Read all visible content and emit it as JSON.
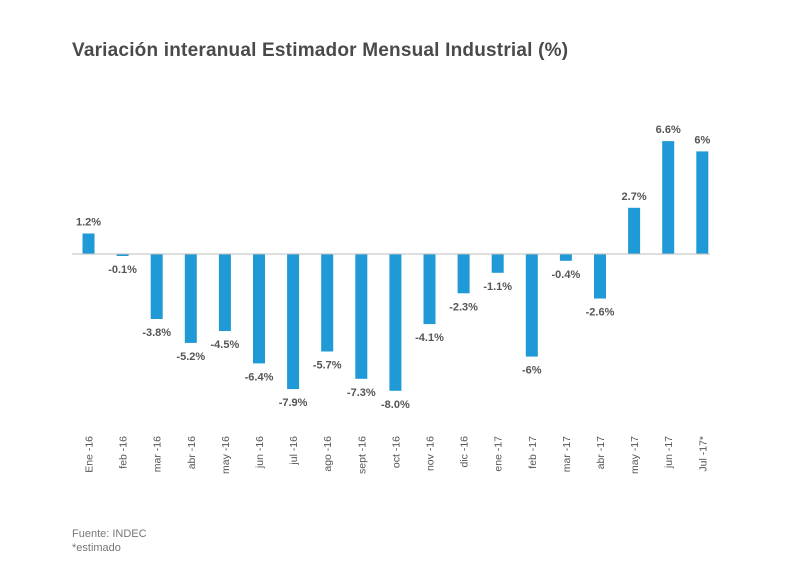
{
  "title": "Variación interanual Estimador Mensual Industrial (%)",
  "footer": {
    "source": "Fuente: INDEC",
    "note": "*estimado"
  },
  "colors": {
    "bar": "#1f9ad6",
    "axis": "#bdbdbd",
    "text": "#555555"
  },
  "chart_data": {
    "type": "bar",
    "title": "Variación interanual Estimador Mensual Industrial (%)",
    "xlabel": "",
    "ylabel": "",
    "grid": false,
    "categories": [
      "Ene -16",
      "feb -16",
      "mar -16",
      "abr -16",
      "may -16",
      "jun -16",
      "jul -16",
      "ago -16",
      "sept -16",
      "oct -16",
      "nov -16",
      "dic -16",
      "ene -17",
      "feb -17",
      "mar -17",
      "abr -17",
      "may -17",
      "jun -17",
      "Jul -17*"
    ],
    "values": [
      1.2,
      -0.1,
      -3.8,
      -5.2,
      -4.5,
      -6.4,
      -7.9,
      -5.7,
      -7.3,
      -8.0,
      -4.1,
      -2.3,
      -1.1,
      -6,
      -0.4,
      -2.6,
      2.7,
      6.6,
      6
    ],
    "labels": [
      "1.2%",
      "-0.1%",
      "-3.8%",
      "-5.2%",
      "-4.5%",
      "-6.4%",
      "-7.9%",
      "-5.7%",
      "-7.3%",
      "-8.0%",
      "-4.1%",
      "-2.3%",
      "-1.1%",
      "-6%",
      "-0.4%",
      "-2.6%",
      "2.7%",
      "6.6%",
      "6%"
    ]
  }
}
